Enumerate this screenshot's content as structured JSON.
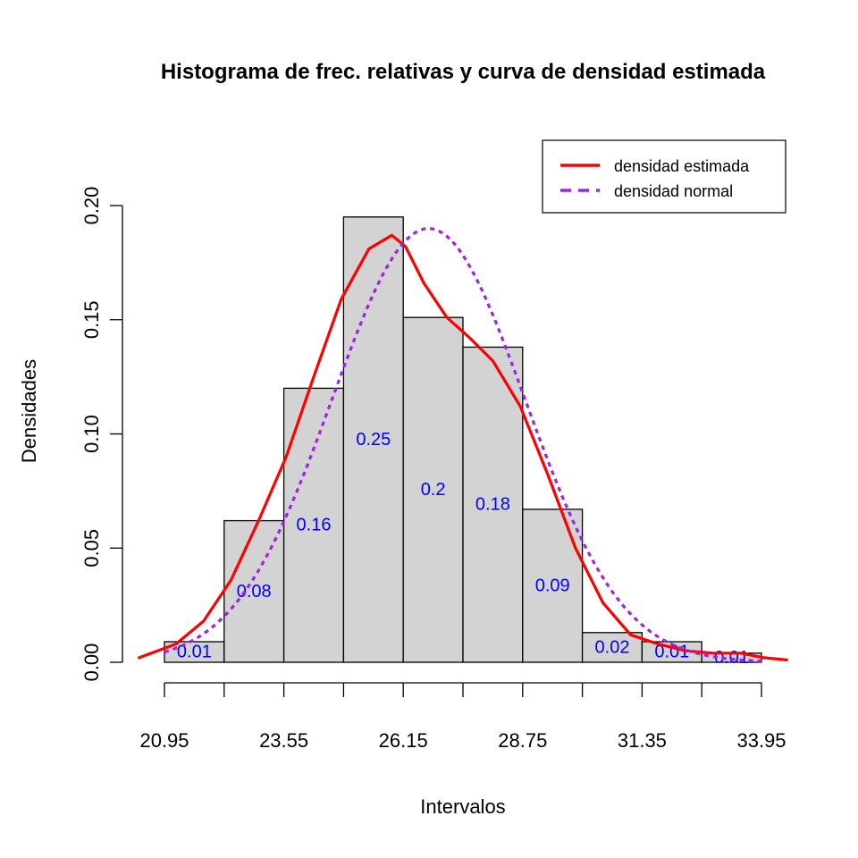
{
  "chart_data": {
    "type": "bar",
    "title": "Histograma de frec. relativas y curva de densidad estimada",
    "xlabel": "Intervalos",
    "ylabel": "Densidades",
    "ylim": [
      0,
      0.2
    ],
    "yticks": [
      "0.00",
      "0.05",
      "0.10",
      "0.15",
      "0.20"
    ],
    "xticks": [
      "20.95",
      "23.55",
      "26.15",
      "28.75",
      "31.35",
      "33.95"
    ],
    "bin_edges": [
      20.95,
      22.25,
      23.55,
      24.85,
      26.15,
      27.45,
      28.75,
      30.05,
      31.35,
      32.65,
      33.95
    ],
    "bar_densities": [
      0.009,
      0.062,
      0.12,
      0.195,
      0.151,
      0.138,
      0.067,
      0.013,
      0.009,
      0.004
    ],
    "bar_labels": [
      "0.01",
      "0.08",
      "0.16",
      "0.25",
      "0.2",
      "0.18",
      "0.09",
      "0.02",
      "0.01",
      "0.01"
    ],
    "bar_color": "#d3d3d3",
    "label_color": "#0000ff",
    "legend_position": "top-right",
    "grid": false,
    "series": [
      {
        "name": "densidad estimada",
        "kind": "line",
        "style": "solid",
        "color": "#ff0000",
        "x": [
          20.4,
          21.2,
          21.8,
          22.4,
          23.0,
          23.6,
          24.2,
          24.8,
          25.4,
          25.9,
          26.2,
          26.6,
          27.1,
          27.6,
          28.1,
          28.7,
          29.3,
          29.9,
          30.5,
          31.1,
          31.7,
          32.3,
          32.9,
          33.5,
          34.0,
          34.5
        ],
        "y": [
          0.002,
          0.008,
          0.018,
          0.036,
          0.062,
          0.09,
          0.125,
          0.159,
          0.181,
          0.187,
          0.182,
          0.166,
          0.151,
          0.142,
          0.132,
          0.112,
          0.082,
          0.05,
          0.026,
          0.012,
          0.008,
          0.005,
          0.004,
          0.004,
          0.002,
          0.001
        ]
      },
      {
        "name": "densidad normal",
        "kind": "line",
        "style": "dashed",
        "color": "#a020f0",
        "mean": 26.7,
        "sd": 2.1,
        "x_range": [
          20.95,
          33.95
        ]
      }
    ]
  }
}
